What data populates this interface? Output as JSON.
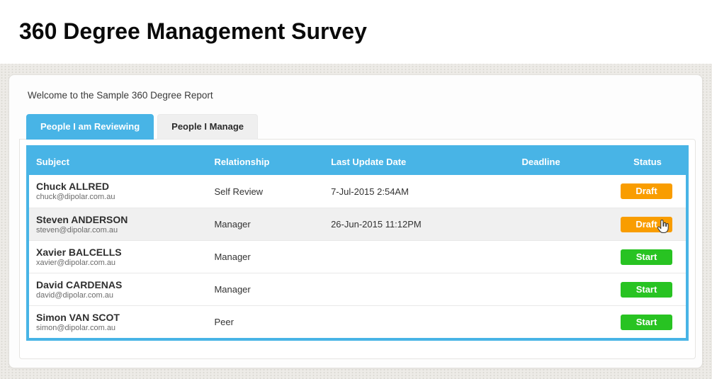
{
  "page": {
    "title": "360 Degree Management Survey"
  },
  "panel": {
    "welcome": "Welcome to the Sample 360 Degree Report"
  },
  "tabs": [
    {
      "label": "People I am Reviewing",
      "active": true
    },
    {
      "label": "People I Manage",
      "active": false
    }
  ],
  "table": {
    "columns": [
      "Subject",
      "Relationship",
      "Last Update Date",
      "Deadline",
      "Status"
    ],
    "rows": [
      {
        "name": "Chuck ALLRED",
        "email": "chuck@dipolar.com.au",
        "relationship": "Self Review",
        "last_update": "7-Jul-2015 2:54AM",
        "deadline": "",
        "status": "Draft",
        "status_color": "#f99d00",
        "hovered": false
      },
      {
        "name": "Steven ANDERSON",
        "email": "steven@dipolar.com.au",
        "relationship": "Manager",
        "last_update": "26-Jun-2015 11:12PM",
        "deadline": "",
        "status": "Draft",
        "status_color": "#f99d00",
        "hovered": true
      },
      {
        "name": "Xavier BALCELLS",
        "email": "xavier@dipolar.com.au",
        "relationship": "Manager",
        "last_update": "",
        "deadline": "",
        "status": "Start",
        "status_color": "#28c322",
        "hovered": false
      },
      {
        "name": "David CARDENAS",
        "email": "david@dipolar.com.au",
        "relationship": "Manager",
        "last_update": "",
        "deadline": "",
        "status": "Start",
        "status_color": "#28c322",
        "hovered": false
      },
      {
        "name": "Simon VAN SCOT",
        "email": "simon@dipolar.com.au",
        "relationship": "Peer",
        "last_update": "",
        "deadline": "",
        "status": "Start",
        "status_color": "#28c322",
        "hovered": false
      }
    ]
  },
  "colors": {
    "accent_blue": "#48b4e6",
    "draft_orange": "#f99d00",
    "start_green": "#28c322"
  }
}
